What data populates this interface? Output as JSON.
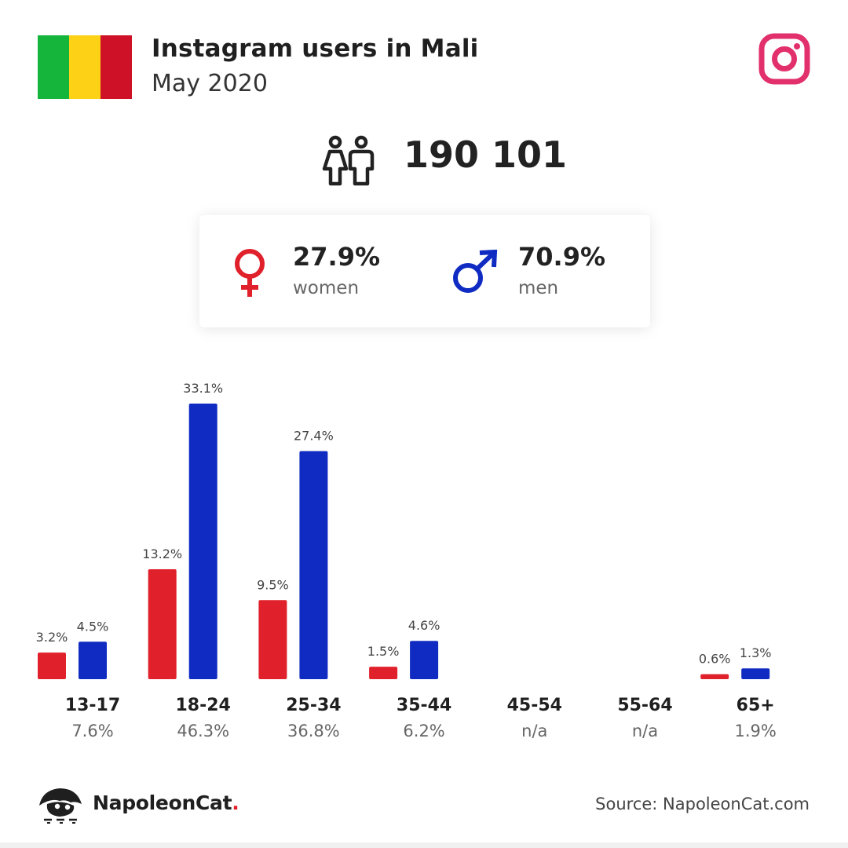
{
  "header": {
    "title": "Instagram users in Mali",
    "subtitle": "May 2020",
    "flag_colors": [
      "#14b53a",
      "#fcd116",
      "#ce1126"
    ],
    "brand_icon": "instagram-icon",
    "brand_color": "#e1306c"
  },
  "summary": {
    "total": "190 101",
    "icon": "people-icon",
    "women": {
      "value": "27.9%",
      "label": "women",
      "icon": "female-symbol-icon",
      "color": "#e0202a"
    },
    "men": {
      "value": "70.9%",
      "label": "men",
      "icon": "male-symbol-icon",
      "color": "#0f2bc2"
    }
  },
  "colors": {
    "women": "#e0202a",
    "men": "#0f2bc2"
  },
  "chart_data": {
    "type": "bar",
    "categories": [
      "13-17",
      "18-24",
      "25-34",
      "35-44",
      "45-54",
      "55-64",
      "65+"
    ],
    "category_totals": [
      "7.6%",
      "46.3%",
      "36.8%",
      "6.2%",
      "n/a",
      "n/a",
      "1.9%"
    ],
    "series": [
      {
        "values": [
          3.2,
          13.2,
          9.5,
          1.5,
          null,
          null,
          0.6
        ],
        "labels": [
          "3.2%",
          "13.2%",
          "9.5%",
          "1.5%",
          "",
          "",
          "0.6%"
        ],
        "color": "#e0202a"
      },
      {
        "values": [
          4.5,
          33.1,
          27.4,
          4.6,
          null,
          null,
          1.3
        ],
        "labels": [
          "4.5%",
          "33.1%",
          "27.4%",
          "4.6%",
          "",
          "",
          "1.3%"
        ],
        "color": "#0f2bc2"
      }
    ],
    "title": "",
    "xlabel": "",
    "ylabel": "",
    "ylim": [
      0,
      33.1
    ],
    "grid": false,
    "legend": "none"
  },
  "footer": {
    "brand": "NapoleonCat",
    "brand_dot": ".",
    "source": "Source: NapoleonCat.com"
  }
}
